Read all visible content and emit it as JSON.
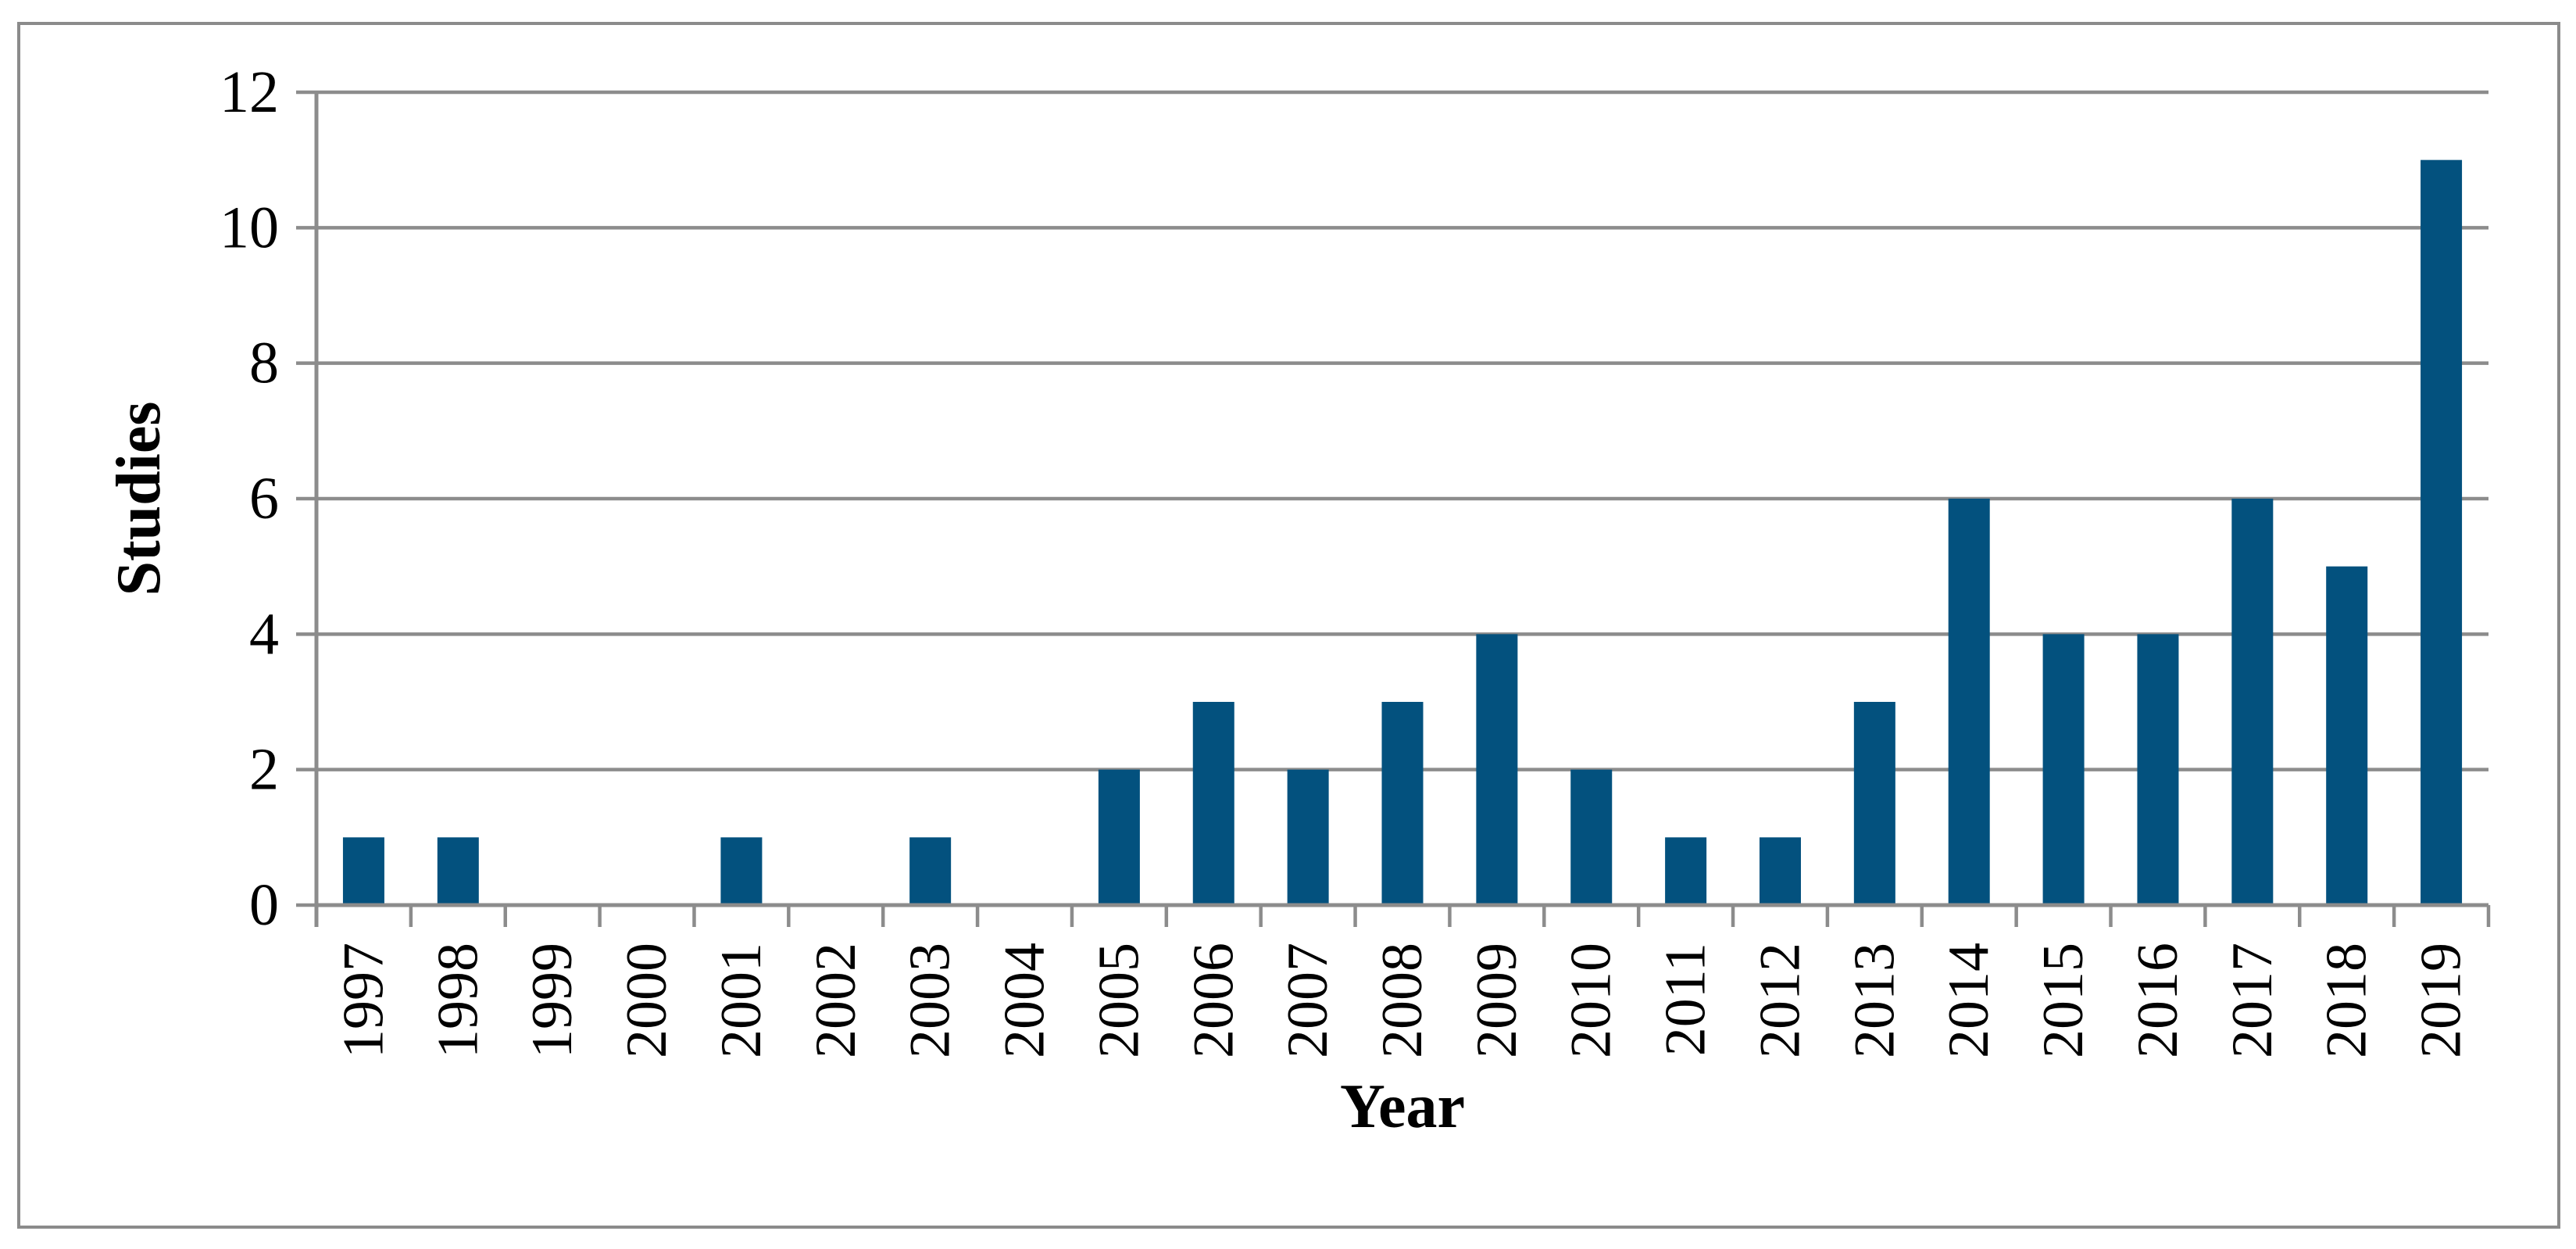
{
  "chart_data": {
    "type": "bar",
    "title": "",
    "categories": [
      "1997",
      "1998",
      "1999",
      "2000",
      "2001",
      "2002",
      "2003",
      "2004",
      "2005",
      "2006",
      "2007",
      "2008",
      "2009",
      "2010",
      "2011",
      "2012",
      "2013",
      "2014",
      "2015",
      "2016",
      "2017",
      "2018",
      "2019"
    ],
    "values": [
      1,
      1,
      0,
      0,
      1,
      0,
      1,
      0,
      2,
      3,
      2,
      3,
      4,
      2,
      1,
      1,
      3,
      6,
      4,
      4,
      6,
      5,
      11
    ],
    "xlabel": "Year",
    "ylabel": "Studies",
    "ylim": [
      0,
      12
    ],
    "yticks": [
      0,
      2,
      4,
      6,
      8,
      10,
      12
    ],
    "grid": "horizontal-gridlines-on",
    "legend_position": "none",
    "bar_color": "#03517E",
    "grid_color": "#8C8C8C",
    "border_color": "#8B8B8B",
    "text_color": "#000000"
  }
}
